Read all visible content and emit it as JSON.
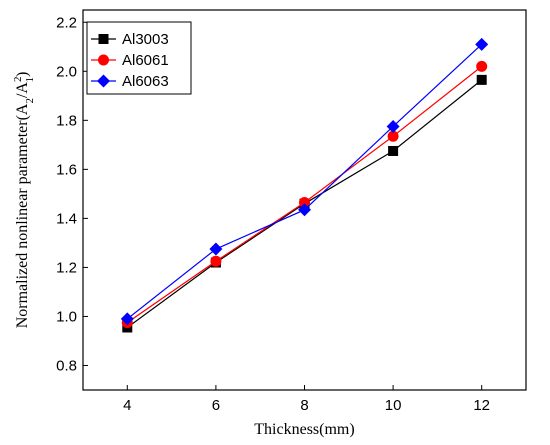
{
  "chart_data": {
    "type": "line",
    "xlabel": "Thickness(mm)",
    "ylabel_main": "Normalized nonlinear parameter(A",
    "ylabel_sub1": "2",
    "ylabel_slash": "/A",
    "ylabel_sup": "2",
    "ylabel_sub2": "1",
    "ylabel_close": ")",
    "xlim": [
      3,
      13
    ],
    "ylim": [
      0.7,
      2.25
    ],
    "x_ticks": [
      4,
      6,
      8,
      10,
      12
    ],
    "x_tick_labels": [
      "4",
      "6",
      "8",
      "10",
      "12"
    ],
    "y_ticks": [
      0.8,
      1.0,
      1.2,
      1.4,
      1.6,
      1.8,
      2.0,
      2.2
    ],
    "y_tick_labels": [
      "0.8",
      "1.0",
      "1.2",
      "1.4",
      "1.6",
      "1.8",
      "2.0",
      "2.2"
    ],
    "grid": false,
    "legend_position": "top-left",
    "series": [
      {
        "name": "Al3003",
        "color": "#000000",
        "marker": "square",
        "x": [
          4,
          6,
          8,
          10,
          12
        ],
        "y": [
          0.955,
          1.22,
          1.46,
          1.675,
          1.965
        ]
      },
      {
        "name": "Al6061",
        "color": "#ff0000",
        "marker": "circle",
        "x": [
          4,
          6,
          8,
          10,
          12
        ],
        "y": [
          0.975,
          1.225,
          1.465,
          1.735,
          2.02
        ]
      },
      {
        "name": "Al6063",
        "color": "#0000ff",
        "marker": "diamond",
        "x": [
          4,
          6,
          8,
          10,
          12
        ],
        "y": [
          0.99,
          1.275,
          1.435,
          1.775,
          2.11
        ]
      }
    ]
  }
}
